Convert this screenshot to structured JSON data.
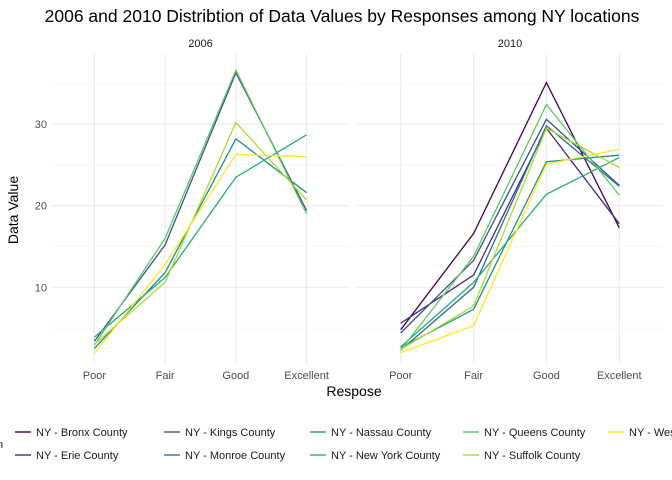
{
  "chart_data": {
    "type": "line",
    "title": "2006 and 2010 Distribtion of Data Values by Responses among NY locations",
    "xlabel": "Respose",
    "ylabel": "Data Value",
    "categories": [
      "Poor",
      "Fair",
      "Good",
      "Excellent"
    ],
    "ylim": [
      0.6,
      38.6
    ],
    "yticks": [
      10,
      20,
      30
    ],
    "grid": true,
    "legend_position": "bottom",
    "legend_title": "n",
    "facets": [
      {
        "label": "2006",
        "series": [
          {
            "name": "NY - Kings County",
            "values": [
              3.4,
              15.2,
              36.3,
              19.4
            ]
          },
          {
            "name": "NY - Nassau County",
            "values": [
              2.5,
              11.8,
              28.2,
              21.6
            ]
          },
          {
            "name": "NY - New York County",
            "values": [
              3.9,
              11.2,
              23.5,
              28.7
            ]
          },
          {
            "name": "NY - Queens County",
            "values": [
              2.9,
              16.0,
              36.6,
              19.0
            ]
          },
          {
            "name": "NY - Suffolk County",
            "values": [
              3.0,
              10.6,
              30.2,
              20.7
            ]
          },
          {
            "name": "NY - Westchester County",
            "values": [
              1.9,
              12.8,
              26.3,
              26.0
            ]
          }
        ]
      },
      {
        "label": "2010",
        "series": [
          {
            "name": "NY - Bronx County",
            "values": [
              4.8,
              16.6,
              35.1,
              17.3
            ]
          },
          {
            "name": "NY - Erie County",
            "values": [
              5.6,
              11.5,
              29.5,
              17.8
            ]
          },
          {
            "name": "NY - Kings County",
            "values": [
              4.4,
              13.3,
              30.6,
              22.5
            ]
          },
          {
            "name": "NY - Monroe County",
            "values": [
              2.3,
              10.0,
              29.8,
              22.4
            ]
          },
          {
            "name": "NY - Nassau County",
            "values": [
              2.6,
              7.3,
              25.4,
              26.2
            ]
          },
          {
            "name": "NY - New York County",
            "values": [
              2.7,
              10.6,
              21.4,
              25.9
            ]
          },
          {
            "name": "NY - Queens County",
            "values": [
              2.3,
              13.8,
              32.4,
              21.3
            ]
          },
          {
            "name": "NY - Suffolk County",
            "values": [
              2.4,
              7.7,
              29.5,
              24.7
            ]
          },
          {
            "name": "NY - Westchester County",
            "values": [
              2.0,
              5.3,
              25.1,
              26.9
            ]
          }
        ]
      }
    ],
    "legend": [
      {
        "name": "NY - Bronx County",
        "color": "#440154"
      },
      {
        "name": "NY - Erie County",
        "color": "#472D7B"
      },
      {
        "name": "NY - Kings County",
        "color": "#3B528B"
      },
      {
        "name": "NY - Monroe County",
        "color": "#2C728E"
      },
      {
        "name": "NY - Nassau County",
        "color": "#21908C"
      },
      {
        "name": "NY - New York County",
        "color": "#27AD81"
      },
      {
        "name": "NY - Queens County",
        "color": "#5DC863"
      },
      {
        "name": "NY - Suffolk County",
        "color": "#AADC32"
      },
      {
        "name": "NY - Westchester County",
        "color": "#FDE725"
      }
    ]
  }
}
